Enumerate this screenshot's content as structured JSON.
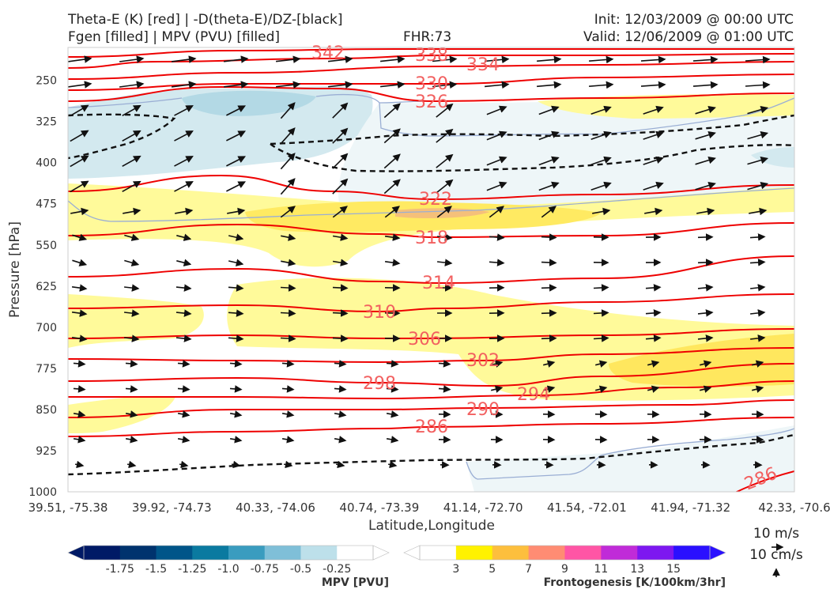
{
  "header": {
    "title_line1": "Theta-E (K) [red] | -D(theta-E)/DZ-[black]",
    "title_line2": "Fgen [filled] | MPV (PVU) [filled]",
    "fhr": "FHR:73",
    "init": "Init: 12/03/2009 @ 00:00 UTC",
    "valid": "Valid: 12/06/2009 @ 01:00 UTC"
  },
  "colors": {
    "theta_e": "#ee0000",
    "theta_e_label": "#f26060",
    "dtheta_dz": "#111111",
    "fgen_levels": [
      "#ffffff",
      "#fff200",
      "#fdbf3d",
      "#ff8c73",
      "#ff55a5",
      "#c02bd8",
      "#7d17f0",
      "#2a10ff"
    ],
    "mpv_levels": [
      "#001a66",
      "#00336e",
      "#005589",
      "#0a7aa0",
      "#3a9cbf",
      "#7fbfd8",
      "#bde0ea",
      "#ffffff"
    ]
  },
  "chart_data": {
    "type": "cross-section",
    "ylabel": "Pressure [hPa]",
    "xlabel": "Latitude,Longitude",
    "y_axis": {
      "ticks": [
        250,
        325,
        400,
        475,
        550,
        625,
        700,
        775,
        850,
        925,
        1000
      ],
      "range": [
        1000,
        190
      ],
      "inverted": true
    },
    "x_axis": {
      "tick_labels": [
        "39.51, -75.38",
        "39.92, -74.73",
        "40.33, -74.06",
        "40.74, -73.39",
        "41.14, -72.70",
        "41.54, -72.01",
        "41.94, -71.32",
        "42.33, -70.6"
      ]
    },
    "theta_e_contours": [
      {
        "value": 342,
        "label": "342"
      },
      {
        "value": 338,
        "label": "338"
      },
      {
        "value": 334,
        "label": "334"
      },
      {
        "value": 330,
        "label": "330"
      },
      {
        "value": 326,
        "label": "326"
      },
      {
        "value": 322,
        "label": "322"
      },
      {
        "value": 318,
        "label": "318"
      },
      {
        "value": 314,
        "label": "314"
      },
      {
        "value": 310,
        "label": "310"
      },
      {
        "value": 306,
        "label": "306"
      },
      {
        "value": 302,
        "label": "302"
      },
      {
        "value": 298,
        "label": "298"
      },
      {
        "value": 294,
        "label": "294"
      },
      {
        "value": 290,
        "label": "290"
      },
      {
        "value": 286,
        "label": "286"
      }
    ],
    "wind_reference": {
      "u_label": "10 m/s",
      "w_label": "10 cm/s"
    },
    "mpv_colorbar": {
      "title": "MPV [PVU]",
      "labels": [
        "-1.75",
        "-1.5",
        "-1.25",
        "-1.0",
        "-0.75",
        "-0.5",
        "-0.25"
      ]
    },
    "fgen_colorbar": {
      "title": "Frontogenesis [K/100km/3hr]",
      "labels": [
        "3",
        "5",
        "7",
        "9",
        "11",
        "13",
        "15"
      ]
    }
  }
}
